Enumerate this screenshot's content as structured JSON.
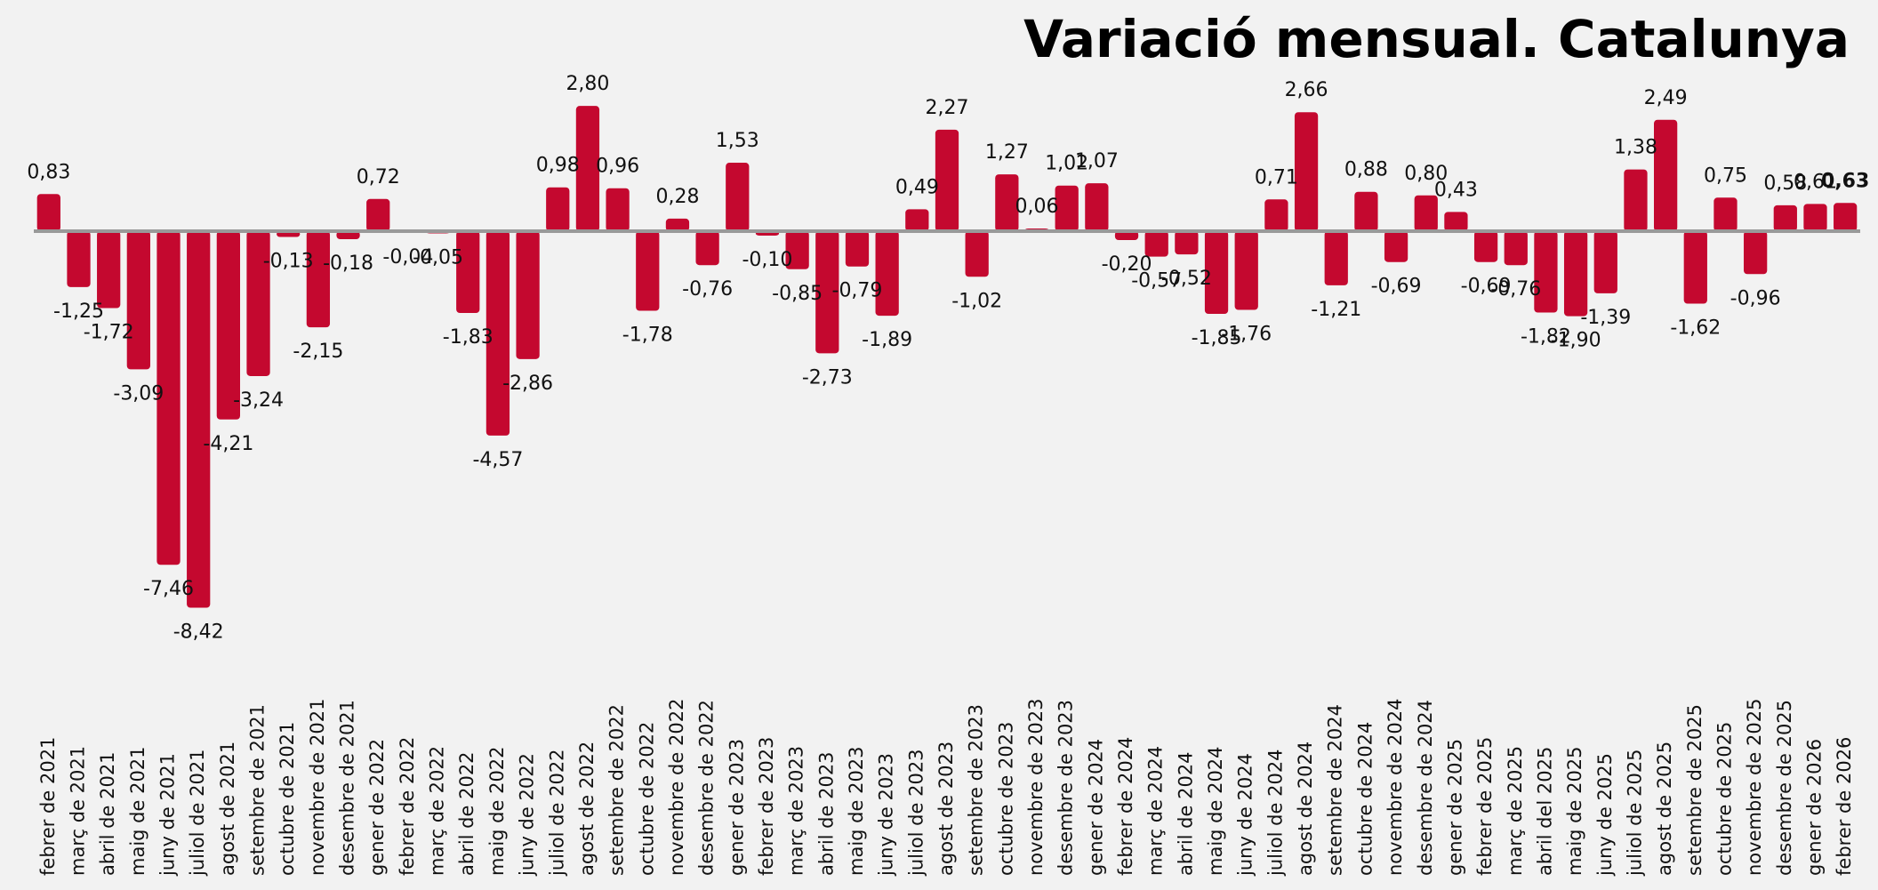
{
  "chart_data": {
    "type": "bar",
    "title": "Variació mensual. Catalunya",
    "categories": [
      "febrer de 2021",
      "març de 2021",
      "abril de 2021",
      "maig de 2021",
      "juny de 2021",
      "juliol de 2021",
      "agost de 2021",
      "setembre de 2021",
      "octubre de 2021",
      "novembre de 2021",
      "desembre de 2021",
      "gener de 2022",
      "febrer de 2022",
      "març de 2022",
      "abril de 2022",
      "maig de 2022",
      "juny de 2022",
      "juliol de 2022",
      "agost de 2022",
      "setembre de 2022",
      "octubre de 2022",
      "novembre de 2022",
      "desembre de 2022",
      "gener de 2023",
      "febrer de 2023",
      "març de 2023",
      "abril de 2023",
      "maig de 2023",
      "juny de 2023",
      "juliol de 2023",
      "agost de 2023",
      "setembre de 2023",
      "octubre de 2023",
      "novembre de 2023",
      "desembre de 2023",
      "gener de 2024",
      "febrer de 2024",
      "març de 2024",
      "abril de 2024",
      "maig de 2024",
      "juny de 2024",
      "juliol de 2024",
      "agost de 2024",
      "setembre de 2024",
      "octubre de 2024",
      "novembre de 2024",
      "desembre de 2024",
      "gener de 2025",
      "febrer de 2025",
      "març de 2025",
      "abril del 2025",
      "maig de 2025",
      "juny de 2025",
      "juliol de 2025",
      "agost de 2025",
      "setembre de 2025",
      "octubre de 2025",
      "novembre de 2025",
      "desembre de 2025",
      "gener de 2026",
      "febrer de 2026"
    ],
    "values": [
      0.83,
      -1.25,
      -1.72,
      -3.09,
      -7.46,
      -8.42,
      -4.21,
      -3.24,
      -0.13,
      -2.15,
      -0.18,
      0.72,
      -0.04,
      -0.05,
      -1.83,
      -4.57,
      -2.86,
      0.98,
      2.8,
      0.96,
      -1.78,
      0.28,
      -0.76,
      1.53,
      -0.1,
      -0.85,
      -2.73,
      -0.79,
      -1.89,
      0.49,
      2.27,
      -1.02,
      1.27,
      0.06,
      1.02,
      1.07,
      -0.2,
      -0.57,
      -0.52,
      -1.85,
      -1.76,
      0.71,
      2.66,
      -1.21,
      0.88,
      -0.69,
      0.8,
      0.43,
      -0.69,
      -0.76,
      -1.82,
      -1.9,
      -1.39,
      1.38,
      2.49,
      -1.62,
      0.75,
      -0.96,
      0.58,
      0.61,
      0.63
    ],
    "value_labels": [
      "0,83",
      "-1,25",
      "-1,72",
      "-3,09",
      "-7,46",
      "-8,42",
      "-4,21",
      "-3,24",
      "-0,13",
      "-2,15",
      "-0,18",
      "0,72",
      "-0,04",
      "-0,05",
      "-1,83",
      "-4,57",
      "-2,86",
      "0,98",
      "2,80",
      "0,96",
      "-1,78",
      "0,28",
      "-0,76",
      "1,53",
      "-0,10",
      "-0,85",
      "-2,73",
      "-0,79",
      "-1,89",
      "0,49",
      "2,27",
      "-1,02",
      "1,27",
      "0,06",
      "1,02",
      "1,07",
      "-0,20",
      "-0,57",
      "-0,52",
      "-1,85",
      "-1,76",
      "0,71",
      "2,66",
      "-1,21",
      "0,88",
      "-0,69",
      "0,80",
      "0,43",
      "-0,69",
      "-0,76",
      "-1,82",
      "-1,90",
      "-1,39",
      "1,38",
      "2,49",
      "-1,62",
      "0,75",
      "-0,96",
      "0,58",
      "0,61",
      "0,63"
    ],
    "color": "#c4082f"
  }
}
